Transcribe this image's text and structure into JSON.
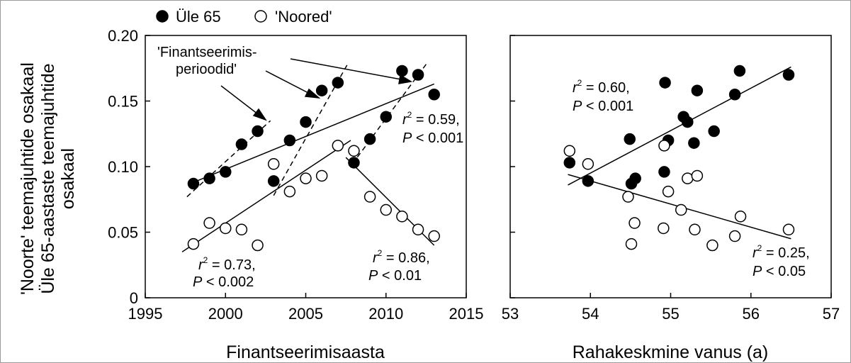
{
  "chart_data": [
    {
      "type": "scatter",
      "panel": "left",
      "xlabel": "Finantseerimisaasta",
      "ylabel_lines": [
        "'Noorte' teemajuhtide osakaal",
        "Üle 65-aastaste teemajuhtide",
        "osakaal"
      ],
      "xlim": [
        1995,
        2015
      ],
      "ylim": [
        0,
        0.2
      ],
      "xticks": [
        "1995",
        "2000",
        "2005",
        "2010",
        "2015"
      ],
      "yticks": [
        "0",
        "0.05",
        "0.10",
        "0.15",
        "0.20"
      ],
      "legend": {
        "placement": "top-left",
        "entries": [
          "Üle 65",
          "'Noored'"
        ]
      },
      "series": [
        {
          "name": "Üle 65",
          "marker": "filled-circle",
          "points": [
            [
              1998,
              0.087
            ],
            [
              1999,
              0.091
            ],
            [
              2000,
              0.096
            ],
            [
              2001,
              0.117
            ],
            [
              2002,
              0.127
            ],
            [
              2003,
              0.089
            ],
            [
              2004,
              0.12
            ],
            [
              2005,
              0.134
            ],
            [
              2006,
              0.158
            ],
            [
              2007,
              0.164
            ],
            [
              2008,
              0.103
            ],
            [
              2009,
              0.121
            ],
            [
              2010,
              0.138
            ],
            [
              2011,
              0.173
            ],
            [
              2012,
              0.17
            ],
            [
              2013,
              0.155
            ]
          ]
        },
        {
          "name": "'Noored'",
          "marker": "open-circle",
          "points": [
            [
              1998,
              0.041
            ],
            [
              1999,
              0.057
            ],
            [
              2000,
              0.053
            ],
            [
              2001,
              0.052
            ],
            [
              2002,
              0.04
            ],
            [
              2003,
              0.102
            ],
            [
              2004,
              0.081
            ],
            [
              2005,
              0.091
            ],
            [
              2006,
              0.093
            ],
            [
              2007,
              0.116
            ],
            [
              2008,
              0.112
            ],
            [
              2009,
              0.077
            ],
            [
              2010,
              0.067
            ],
            [
              2011,
              0.062
            ],
            [
              2012,
              0.052
            ],
            [
              2013,
              0.047
            ]
          ]
        }
      ],
      "fits": [
        {
          "style": "solid",
          "x": [
            1998,
            2013
          ],
          "y": [
            0.088,
            0.163
          ]
        },
        {
          "style": "solid",
          "x": [
            1997.3,
            2007.8
          ],
          "y": [
            0.035,
            0.12
          ]
        },
        {
          "style": "solid",
          "x": [
            2007.5,
            2013
          ],
          "y": [
            0.107,
            0.04
          ]
        },
        {
          "style": "dashed",
          "x": [
            1997.6,
            2002.8
          ],
          "y": [
            0.077,
            0.135
          ]
        },
        {
          "style": "dashed",
          "x": [
            2003,
            2007.6
          ],
          "y": [
            0.078,
            0.178
          ]
        },
        {
          "style": "dashed",
          "x": [
            2007.9,
            2012.5
          ],
          "y": [
            0.102,
            0.178
          ]
        }
      ],
      "annotations": [
        {
          "r2": "0.59,",
          "p": "< 0.001"
        },
        {
          "r2": "0.73,",
          "p": "< 0.002"
        },
        {
          "r2": "0.86,",
          "p": "< 0.01"
        }
      ],
      "callout": {
        "lines": [
          "'Finantseerimis-",
          "perioodid'"
        ]
      }
    },
    {
      "type": "scatter",
      "panel": "right",
      "xlabel": "Rahakeskmine vanus (a)",
      "xlim": [
        53,
        57
      ],
      "ylim": [
        0,
        0.2
      ],
      "xticks": [
        "53",
        "54",
        "55",
        "56",
        "57"
      ],
      "series": [
        {
          "name": "Üle 65",
          "marker": "filled-circle",
          "points": [
            [
              53.74,
              0.103
            ],
            [
              53.97,
              0.089
            ],
            [
              54.49,
              0.121
            ],
            [
              54.51,
              0.087
            ],
            [
              54.56,
              0.091
            ],
            [
              54.92,
              0.096
            ],
            [
              54.93,
              0.164
            ],
            [
              54.97,
              0.12
            ],
            [
              55.16,
              0.138
            ],
            [
              55.21,
              0.134
            ],
            [
              55.29,
              0.118
            ],
            [
              55.33,
              0.158
            ],
            [
              55.54,
              0.127
            ],
            [
              55.8,
              0.155
            ],
            [
              55.86,
              0.173
            ],
            [
              56.47,
              0.17
            ]
          ]
        },
        {
          "name": "'Noored'",
          "marker": "open-circle",
          "points": [
            [
              53.74,
              0.112
            ],
            [
              53.97,
              0.102
            ],
            [
              54.47,
              0.077
            ],
            [
              54.51,
              0.041
            ],
            [
              54.55,
              0.057
            ],
            [
              54.91,
              0.053
            ],
            [
              54.92,
              0.116
            ],
            [
              54.97,
              0.081
            ],
            [
              55.13,
              0.067
            ],
            [
              55.21,
              0.091
            ],
            [
              55.3,
              0.052
            ],
            [
              55.33,
              0.093
            ],
            [
              55.52,
              0.04
            ],
            [
              55.8,
              0.047
            ],
            [
              55.87,
              0.062
            ],
            [
              56.47,
              0.052
            ]
          ]
        }
      ],
      "fits": [
        {
          "style": "solid",
          "x": [
            53.72,
            56.5
          ],
          "y": [
            0.086,
            0.176
          ]
        },
        {
          "style": "solid",
          "x": [
            53.72,
            56.5
          ],
          "y": [
            0.094,
            0.045
          ]
        }
      ],
      "annotations": [
        {
          "r2": "0.60,",
          "p": "< 0.001"
        },
        {
          "r2": "0.25,",
          "p": "< 0.05"
        }
      ]
    }
  ]
}
